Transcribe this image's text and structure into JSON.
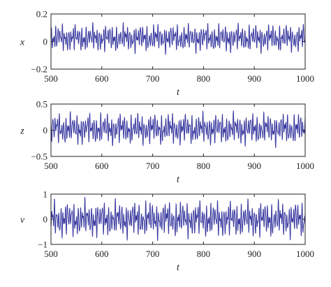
{
  "chart_data": [
    {
      "type": "line",
      "xlabel": "t",
      "ylabel": "x",
      "xlim": [
        500,
        1000
      ],
      "ylim": [
        -0.2,
        0.2
      ],
      "x_ticks": [
        500,
        600,
        700,
        800,
        900,
        1000
      ],
      "x_tick_labels": [
        "500",
        "600",
        "700",
        "800",
        "900",
        "1000"
      ],
      "y_ticks": [
        -0.2,
        0,
        0.2
      ],
      "y_tick_labels": [
        "−0.2",
        "0",
        "0.2"
      ],
      "line_color": "#3a3aa0",
      "series": [
        {
          "x_range": [
            500,
            1000
          ],
          "y_range_approx": [
            -0.1,
            0.15
          ]
        }
      ]
    },
    {
      "type": "line",
      "xlabel": "t",
      "ylabel": "z",
      "xlim": [
        500,
        1000
      ],
      "ylim": [
        -0.5,
        0.5
      ],
      "x_ticks": [
        500,
        600,
        700,
        800,
        900,
        1000
      ],
      "x_tick_labels": [
        "500",
        "600",
        "700",
        "800",
        "900",
        "1000"
      ],
      "y_ticks": [
        -0.5,
        0,
        0.5
      ],
      "y_tick_labels": [
        "−0.5",
        "0",
        "0.5"
      ],
      "line_color": "#3a3aa0",
      "series": [
        {
          "x_range": [
            500,
            1000
          ],
          "y_range_approx": [
            -0.35,
            0.4
          ]
        }
      ]
    },
    {
      "type": "line",
      "xlabel": "t",
      "ylabel": "v",
      "xlim": [
        500,
        1000
      ],
      "ylim": [
        -1,
        1
      ],
      "x_ticks": [
        500,
        600,
        700,
        800,
        900,
        1000
      ],
      "x_tick_labels": [
        "500",
        "600",
        "700",
        "800",
        "900",
        "1000"
      ],
      "y_ticks": [
        -1,
        0,
        1
      ],
      "y_tick_labels": [
        "−1",
        "0",
        "1"
      ],
      "line_color": "#3a3aa0",
      "series": [
        {
          "x_range": [
            500,
            1000
          ],
          "y_range_approx": [
            -0.9,
            0.9
          ]
        }
      ]
    }
  ]
}
